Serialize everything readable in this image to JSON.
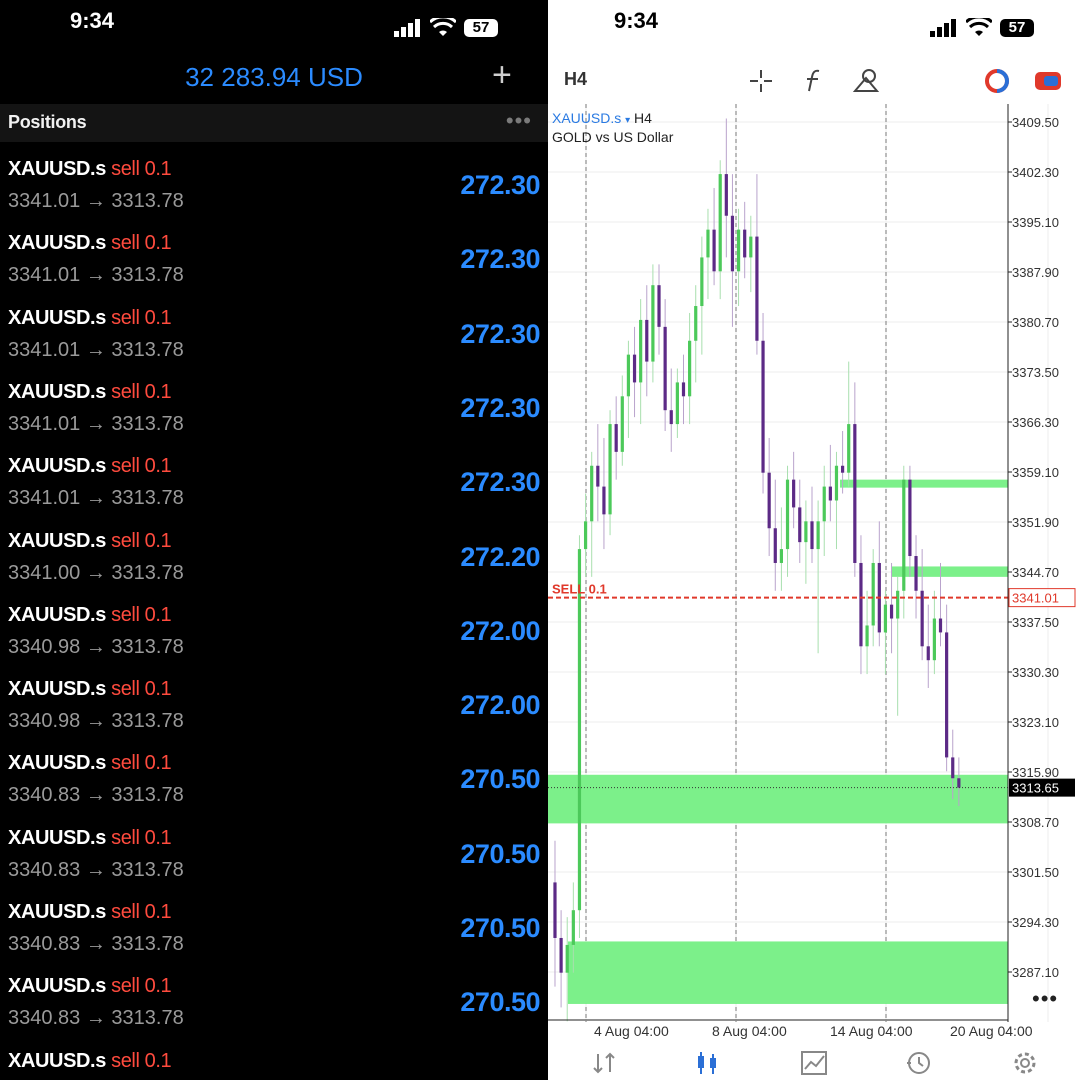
{
  "left": {
    "status": {
      "time": "9:34",
      "battery": "57"
    },
    "balance": "32 283.94 USD",
    "section_label": "Positions",
    "positions": [
      {
        "symbol": "XAUUSD.s",
        "side": "sell 0.1",
        "prices": "3341.01 → 3313.78",
        "profit": "272.30"
      },
      {
        "symbol": "XAUUSD.s",
        "side": "sell 0.1",
        "prices": "3341.01 → 3313.78",
        "profit": "272.30"
      },
      {
        "symbol": "XAUUSD.s",
        "side": "sell 0.1",
        "prices": "3341.01 → 3313.78",
        "profit": "272.30"
      },
      {
        "symbol": "XAUUSD.s",
        "side": "sell 0.1",
        "prices": "3341.01 → 3313.78",
        "profit": "272.30"
      },
      {
        "symbol": "XAUUSD.s",
        "side": "sell 0.1",
        "prices": "3341.01 → 3313.78",
        "profit": "272.30"
      },
      {
        "symbol": "XAUUSD.s",
        "side": "sell 0.1",
        "prices": "3341.00 → 3313.78",
        "profit": "272.20"
      },
      {
        "symbol": "XAUUSD.s",
        "side": "sell 0.1",
        "prices": "3340.98 → 3313.78",
        "profit": "272.00"
      },
      {
        "symbol": "XAUUSD.s",
        "side": "sell 0.1",
        "prices": "3340.98 → 3313.78",
        "profit": "272.00"
      },
      {
        "symbol": "XAUUSD.s",
        "side": "sell 0.1",
        "prices": "3340.83 → 3313.78",
        "profit": "270.50"
      },
      {
        "symbol": "XAUUSD.s",
        "side": "sell 0.1",
        "prices": "3340.83 → 3313.78",
        "profit": "270.50"
      },
      {
        "symbol": "XAUUSD.s",
        "side": "sell 0.1",
        "prices": "3340.83 → 3313.78",
        "profit": "270.50"
      },
      {
        "symbol": "XAUUSD.s",
        "side": "sell 0.1",
        "prices": "3340.83 → 3313.78",
        "profit": "270.50"
      },
      {
        "symbol": "XAUUSD.s",
        "side": "sell 0.1",
        "prices": "",
        "profit": ""
      }
    ]
  },
  "right": {
    "status": {
      "time": "9:34",
      "battery": "57"
    },
    "timeframe": "H4",
    "symbol": "XAUUSD.s",
    "symbol_tf": "H4",
    "description": "GOLD vs US Dollar",
    "sell_label": "SELL 0.1",
    "tools": [
      "crosshair-icon",
      "function-icon",
      "objects-icon"
    ],
    "tabs": [
      "quotes-tab",
      "chart-tab",
      "trade-tab",
      "history-tab",
      "settings-tab"
    ]
  },
  "chart_data": {
    "type": "candlestick",
    "title": "",
    "y_ticks": [
      "3409.50",
      "3402.30",
      "3395.10",
      "3387.90",
      "3380.70",
      "3373.50",
      "3366.30",
      "3359.10",
      "3351.90",
      "3344.70",
      "3337.50",
      "3330.30",
      "3323.10",
      "3315.90",
      "3308.70",
      "3301.50",
      "3294.30",
      "3287.10"
    ],
    "ylim": [
      3279.5,
      3413.0
    ],
    "x_ticks": [
      "4 Aug 04:00",
      "8 Aug 04:00",
      "14 Aug 04:00",
      "20 Aug 04:00"
    ],
    "current_price": "3313.65",
    "sell_entry_price": "3341.01",
    "colors": {
      "up": "#4cc95a",
      "down": "#5c2a86",
      "zone": "#7cf08a",
      "sell": "#e0392b"
    },
    "zones": [
      {
        "from": 3358,
        "to": 3357,
        "span": "from 14 Aug"
      },
      {
        "from": 3345.5,
        "to": 3344,
        "span": "from 15 Aug"
      },
      {
        "from": 3315.5,
        "to": 3308.5,
        "span": "full"
      },
      {
        "from": 3291.5,
        "to": 3282.5,
        "span": "full"
      }
    ],
    "candles": [
      {
        "o": 3300,
        "h": 3306,
        "l": 3285,
        "c": 3292
      },
      {
        "o": 3292,
        "h": 3296,
        "l": 3282,
        "c": 3287
      },
      {
        "o": 3287,
        "h": 3295,
        "l": 3280,
        "c": 3291
      },
      {
        "o": 3291,
        "h": 3300,
        "l": 3287,
        "c": 3296
      },
      {
        "o": 3296,
        "h": 3350,
        "l": 3292,
        "c": 3348
      },
      {
        "o": 3348,
        "h": 3356,
        "l": 3344,
        "c": 3352
      },
      {
        "o": 3352,
        "h": 3362,
        "l": 3344,
        "c": 3360
      },
      {
        "o": 3360,
        "h": 3366,
        "l": 3352,
        "c": 3357
      },
      {
        "o": 3357,
        "h": 3364,
        "l": 3348,
        "c": 3353
      },
      {
        "o": 3353,
        "h": 3368,
        "l": 3350,
        "c": 3366
      },
      {
        "o": 3366,
        "h": 3370,
        "l": 3358,
        "c": 3362
      },
      {
        "o": 3362,
        "h": 3373,
        "l": 3360,
        "c": 3370
      },
      {
        "o": 3370,
        "h": 3378,
        "l": 3364,
        "c": 3376
      },
      {
        "o": 3376,
        "h": 3380,
        "l": 3367,
        "c": 3372
      },
      {
        "o": 3372,
        "h": 3384,
        "l": 3366,
        "c": 3381
      },
      {
        "o": 3381,
        "h": 3386,
        "l": 3370,
        "c": 3375
      },
      {
        "o": 3375,
        "h": 3389,
        "l": 3372,
        "c": 3386
      },
      {
        "o": 3386,
        "h": 3389,
        "l": 3376,
        "c": 3380
      },
      {
        "o": 3380,
        "h": 3384,
        "l": 3365,
        "c": 3368
      },
      {
        "o": 3368,
        "h": 3374,
        "l": 3362,
        "c": 3366
      },
      {
        "o": 3366,
        "h": 3374,
        "l": 3364,
        "c": 3372
      },
      {
        "o": 3372,
        "h": 3376,
        "l": 3366,
        "c": 3370
      },
      {
        "o": 3370,
        "h": 3382,
        "l": 3366,
        "c": 3378
      },
      {
        "o": 3378,
        "h": 3386,
        "l": 3372,
        "c": 3383
      },
      {
        "o": 3383,
        "h": 3393,
        "l": 3376,
        "c": 3390
      },
      {
        "o": 3390,
        "h": 3397,
        "l": 3384,
        "c": 3394
      },
      {
        "o": 3394,
        "h": 3400,
        "l": 3386,
        "c": 3388
      },
      {
        "o": 3388,
        "h": 3404,
        "l": 3384,
        "c": 3402
      },
      {
        "o": 3402,
        "h": 3410,
        "l": 3390,
        "c": 3396
      },
      {
        "o": 3396,
        "h": 3402,
        "l": 3380,
        "c": 3388
      },
      {
        "o": 3388,
        "h": 3397,
        "l": 3383,
        "c": 3394
      },
      {
        "o": 3394,
        "h": 3398,
        "l": 3387,
        "c": 3390
      },
      {
        "o": 3390,
        "h": 3396,
        "l": 3385,
        "c": 3393
      },
      {
        "o": 3393,
        "h": 3402,
        "l": 3376,
        "c": 3378
      },
      {
        "o": 3378,
        "h": 3382,
        "l": 3356,
        "c": 3359
      },
      {
        "o": 3359,
        "h": 3364,
        "l": 3347,
        "c": 3351
      },
      {
        "o": 3351,
        "h": 3358,
        "l": 3342,
        "c": 3346
      },
      {
        "o": 3346,
        "h": 3354,
        "l": 3342,
        "c": 3348
      },
      {
        "o": 3348,
        "h": 3360,
        "l": 3344,
        "c": 3358
      },
      {
        "o": 3358,
        "h": 3362,
        "l": 3351,
        "c": 3354
      },
      {
        "o": 3354,
        "h": 3358,
        "l": 3346,
        "c": 3349
      },
      {
        "o": 3349,
        "h": 3355,
        "l": 3343,
        "c": 3352
      },
      {
        "o": 3352,
        "h": 3357,
        "l": 3346,
        "c": 3348
      },
      {
        "o": 3348,
        "h": 3355,
        "l": 3333,
        "c": 3352
      },
      {
        "o": 3352,
        "h": 3360,
        "l": 3347,
        "c": 3357
      },
      {
        "o": 3357,
        "h": 3363,
        "l": 3352,
        "c": 3355
      },
      {
        "o": 3355,
        "h": 3362,
        "l": 3348,
        "c": 3360
      },
      {
        "o": 3360,
        "h": 3365,
        "l": 3356,
        "c": 3359
      },
      {
        "o": 3359,
        "h": 3375,
        "l": 3357,
        "c": 3366
      },
      {
        "o": 3366,
        "h": 3372,
        "l": 3344,
        "c": 3346
      },
      {
        "o": 3346,
        "h": 3350,
        "l": 3330,
        "c": 3334
      },
      {
        "o": 3334,
        "h": 3342,
        "l": 3330,
        "c": 3337
      },
      {
        "o": 3337,
        "h": 3348,
        "l": 3334,
        "c": 3346
      },
      {
        "o": 3346,
        "h": 3352,
        "l": 3334,
        "c": 3336
      },
      {
        "o": 3336,
        "h": 3342,
        "l": 3330,
        "c": 3340
      },
      {
        "o": 3340,
        "h": 3346,
        "l": 3333,
        "c": 3338
      },
      {
        "o": 3338,
        "h": 3344,
        "l": 3324,
        "c": 3342
      },
      {
        "o": 3342,
        "h": 3360,
        "l": 3338,
        "c": 3358
      },
      {
        "o": 3358,
        "h": 3360,
        "l": 3344,
        "c": 3347
      },
      {
        "o": 3347,
        "h": 3350,
        "l": 3338,
        "c": 3342
      },
      {
        "o": 3342,
        "h": 3348,
        "l": 3332,
        "c": 3334
      },
      {
        "o": 3334,
        "h": 3340,
        "l": 3328,
        "c": 3332
      },
      {
        "o": 3332,
        "h": 3342,
        "l": 3330,
        "c": 3338
      },
      {
        "o": 3338,
        "h": 3346,
        "l": 3334,
        "c": 3336
      },
      {
        "o": 3336,
        "h": 3340,
        "l": 3316,
        "c": 3318
      },
      {
        "o": 3318,
        "h": 3322,
        "l": 3312,
        "c": 3315
      },
      {
        "o": 3315,
        "h": 3318,
        "l": 3311,
        "c": 3313.65
      }
    ]
  }
}
